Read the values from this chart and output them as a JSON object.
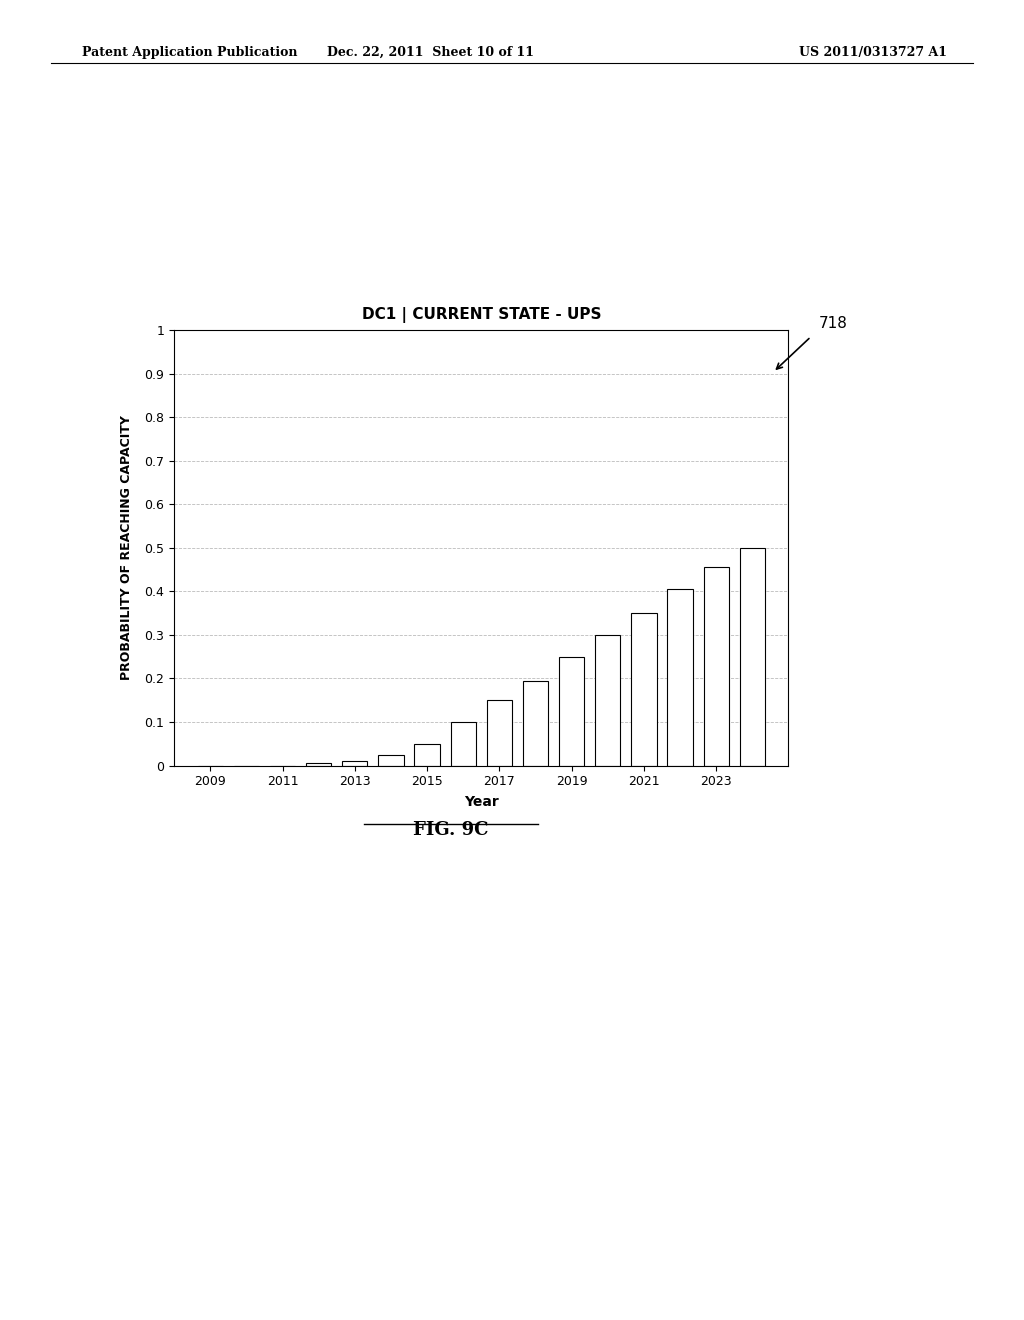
{
  "title": "DC1 | CURRENT STATE - UPS",
  "xlabel": "Year",
  "ylabel": "PROBABILITY OF REACHING CAPACITY",
  "years": [
    2009,
    2010,
    2011,
    2012,
    2013,
    2014,
    2015,
    2016,
    2017,
    2018,
    2019,
    2020,
    2021,
    2022,
    2023,
    2024
  ],
  "values": [
    0.0,
    0.0,
    0.0,
    0.005,
    0.01,
    0.025,
    0.05,
    0.1,
    0.15,
    0.195,
    0.25,
    0.3,
    0.35,
    0.405,
    0.455,
    0.5
  ],
  "ylim": [
    0,
    1
  ],
  "yticks": [
    0,
    0.1,
    0.2,
    0.3,
    0.4,
    0.5,
    0.6,
    0.7,
    0.8,
    0.9,
    1
  ],
  "xticks": [
    2009,
    2011,
    2013,
    2015,
    2017,
    2019,
    2021,
    2023
  ],
  "bar_color": "#ffffff",
  "bar_edge_color": "#000000",
  "grid_color": "#aaaaaa",
  "background_color": "#ffffff",
  "page_background": "#ffffff",
  "header_left": "Patent Application Publication",
  "header_center": "Dec. 22, 2011  Sheet 10 of 11",
  "header_right": "US 2011/0313727 A1",
  "annotation_label": "718",
  "fig_label": "FIG. 9C",
  "title_fontsize": 11,
  "axis_fontsize": 9,
  "tick_fontsize": 9,
  "ylabel_fontsize": 9,
  "header_fontsize": 9,
  "figlabel_fontsize": 13
}
